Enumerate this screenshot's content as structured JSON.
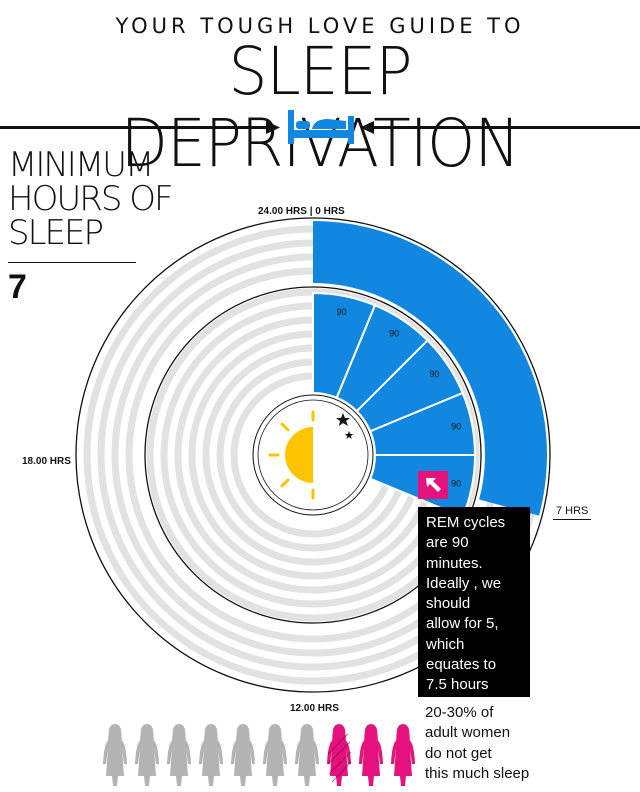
{
  "header": {
    "kicker": "YOUR TOUGH LOVE GUIDE TO",
    "title": "SLEEP DEPRIVATION",
    "bed_icon": "bed-icon",
    "arrow_icons": [
      "arrow-right-icon",
      "arrow-left-icon"
    ]
  },
  "minimum_hours": {
    "label_lines": [
      "MINIMUM",
      "HOURS OF",
      "SLEEP"
    ],
    "value": "7"
  },
  "dial": {
    "labels": {
      "top": "24.00 HRS | 0 HRS",
      "left": "18.00 HRS",
      "bottom": "12.00 HRS",
      "right": "7 HRS"
    },
    "sleep_hours": 7,
    "total_hours": 24,
    "rem_cycle_minutes": [
      90,
      90,
      90,
      90,
      90
    ],
    "center_icon": "sun-moon-icon",
    "colors": {
      "sleep": "#1287e0",
      "track": "#e2e2e2",
      "outline": "#111111"
    }
  },
  "rem_note": {
    "arrow_icon": "arrow-up-left-icon",
    "badge_color": "#e5127d",
    "lines": [
      "REM cycles",
      "are 90",
      "minutes.",
      "Ideally , we",
      "should",
      "allow for 5,",
      "which",
      "equates to",
      "7.5 hours"
    ]
  },
  "stat": {
    "lines": [
      "20-30% of",
      "adult women",
      "do not get",
      "this much sleep"
    ],
    "figures_total": 10,
    "figures_highlighted": 3,
    "figure_icon": "woman-silhouette-icon",
    "colors": {
      "normal": "#b3b3b3",
      "highlight": "#e5127d"
    }
  }
}
